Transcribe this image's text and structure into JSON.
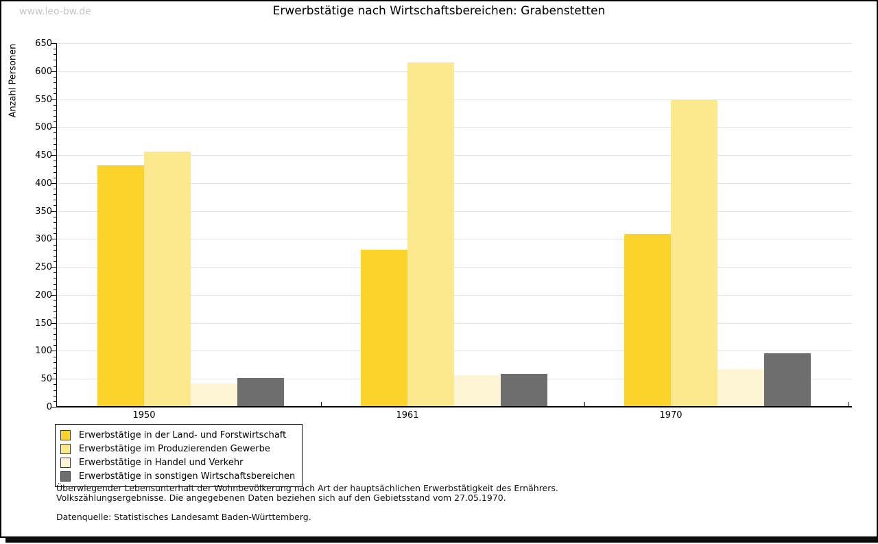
{
  "watermark": "www.leo-bw.de",
  "title": "Erwerbstätige nach Wirtschaftsbereichen: Grabenstetten",
  "chart_data": {
    "type": "bar",
    "title": "Erwerbstätige nach Wirtschaftsbereichen: Grabenstetten",
    "xlabel": "",
    "ylabel": "Anzahl Personen",
    "ylim": [
      0,
      650
    ],
    "ytick_step": 50,
    "y_minor_step": 10,
    "grid": true,
    "legend_position": "bottom-left",
    "categories": [
      "1950",
      "1961",
      "1970"
    ],
    "series": [
      {
        "name": "Erwerbstätige in der Land- und Forstwirtschaft",
        "color": "#fcd32b",
        "values": [
          430,
          280,
          308
        ]
      },
      {
        "name": "Erwerbstätige im Produzierenden Gewerbe",
        "color": "#fce88d",
        "values": [
          455,
          615,
          548
        ]
      },
      {
        "name": "Erwerbstätige in Handel und Verkehr",
        "color": "#fdf4d3",
        "values": [
          40,
          55,
          66
        ]
      },
      {
        "name": "Erwerbstätige in sonstigen Wirtschaftsbereichen",
        "color": "#6e6e6e",
        "values": [
          50,
          58,
          95
        ]
      }
    ]
  },
  "footnotes": {
    "line1": "Überwiegender Lebensunterhalt der Wohnbevölkerung nach Art der hauptsächlichen Erwerbstätigkeit des Ernährers.",
    "line2": "Volkszählungsergebnisse. Die angegebenen Daten beziehen sich auf den Gebietsstand vom 27.05.1970.",
    "source": "Datenquelle: Statistisches Landesamt Baden-Württemberg."
  }
}
